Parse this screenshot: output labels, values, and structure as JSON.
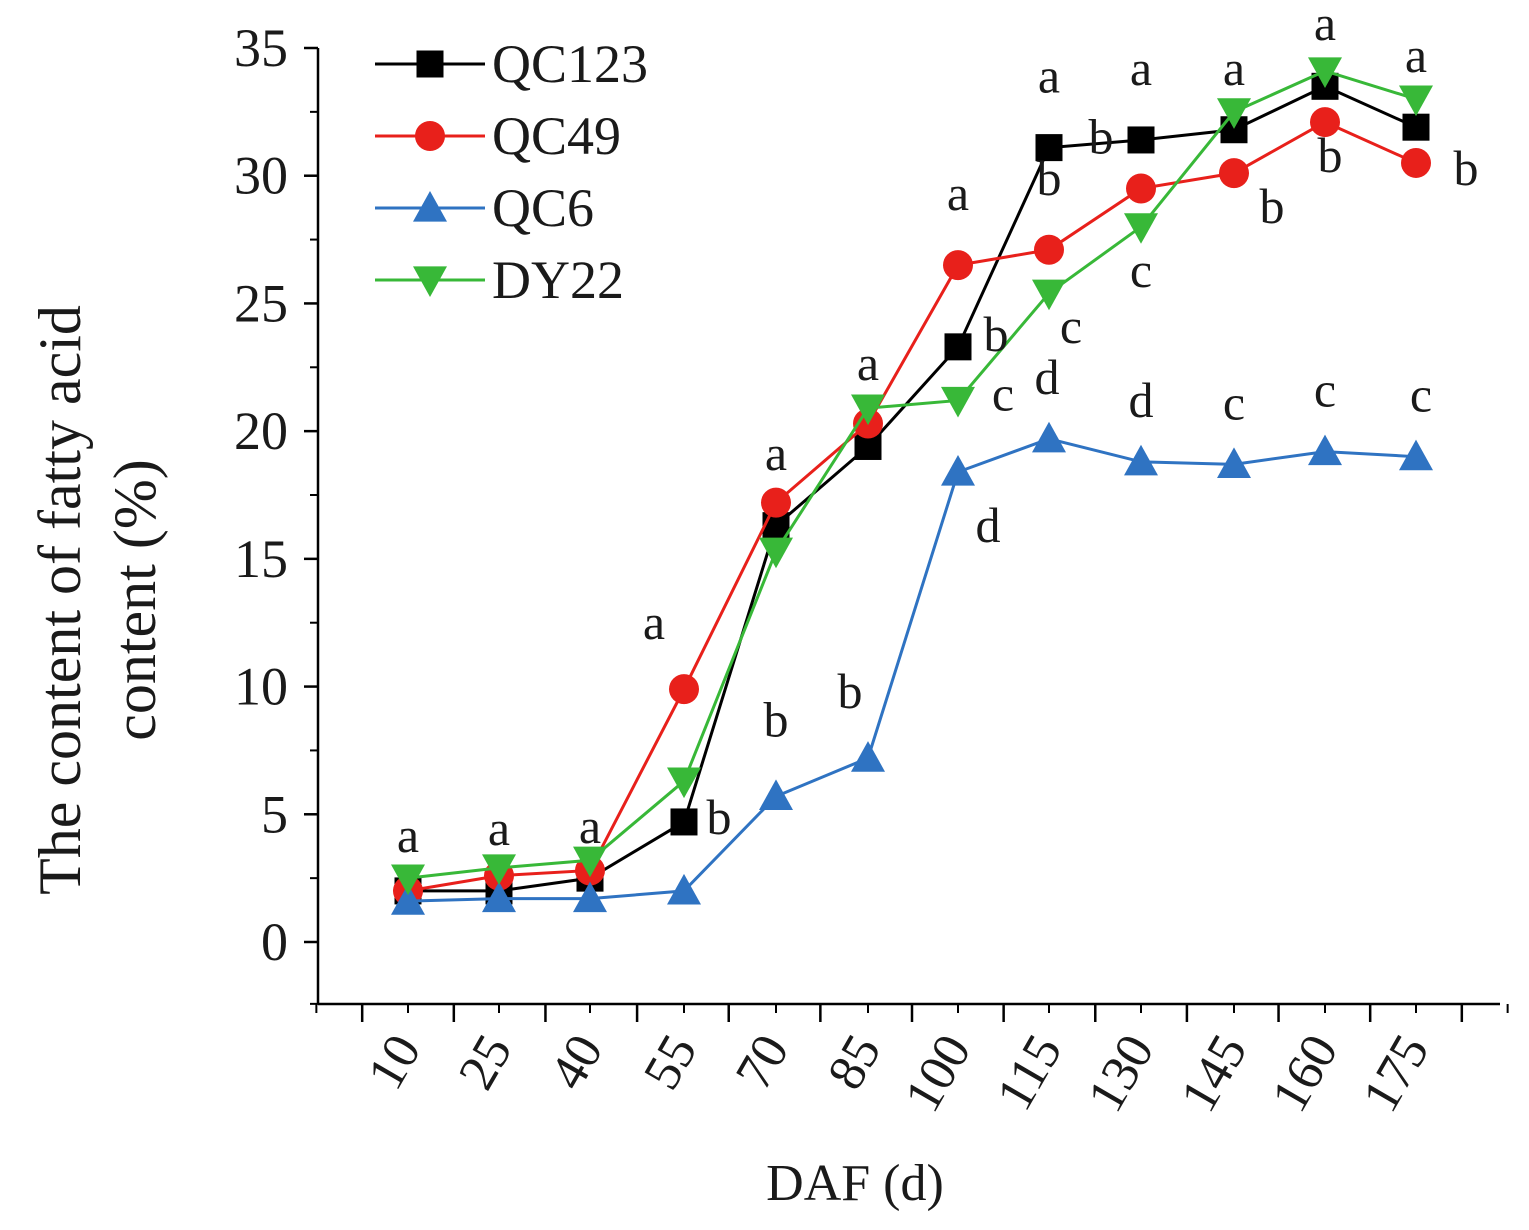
{
  "chart_data": {
    "type": "line",
    "title": "",
    "xlabel": "DAF (d)",
    "ylabel": "The  content of fatty acid content (%)",
    "ylabel_lines": [
      "The  content of fatty acid",
      "content (%)"
    ],
    "ylim": [
      -2.5,
      35
    ],
    "yticks": [
      "0",
      "5",
      "10",
      "15",
      "20",
      "25",
      "30",
      "35"
    ],
    "categories": [
      "10",
      "25",
      "40",
      "55",
      "70",
      "85",
      "100",
      "115",
      "130",
      "145",
      "160",
      "175"
    ],
    "grid": false,
    "legend_position": "top-left",
    "series": [
      {
        "name": "QC123",
        "color": "#000000",
        "marker": "square",
        "values": [
          2.0,
          2.0,
          2.5,
          4.7,
          16.3,
          19.4,
          23.3,
          31.1,
          31.4,
          31.8,
          33.5,
          31.9
        ],
        "labels": [
          "",
          "",
          "",
          "b",
          "",
          "",
          "b",
          "a",
          "a",
          "",
          "",
          ""
        ]
      },
      {
        "name": "QC49",
        "color": "#e8201b",
        "marker": "circle",
        "values": [
          2.0,
          2.6,
          2.8,
          9.9,
          17.2,
          20.3,
          26.5,
          27.1,
          29.5,
          30.1,
          32.1,
          30.5
        ],
        "labels": [
          "",
          "",
          "",
          "a",
          "",
          "",
          "a",
          "b",
          "b",
          "b",
          "b",
          "b"
        ]
      },
      {
        "name": "QC6",
        "color": "#2f73c2",
        "marker": "triangle-up",
        "values": [
          1.6,
          1.7,
          1.7,
          2.0,
          5.7,
          7.2,
          18.4,
          19.7,
          18.8,
          18.7,
          19.2,
          19.0
        ],
        "labels": [
          "",
          "",
          "",
          "",
          "b",
          "b",
          "d",
          "d",
          "d",
          "c",
          "c",
          "c"
        ]
      },
      {
        "name": "DY22",
        "color": "#38b838",
        "marker": "triangle-down",
        "values": [
          2.5,
          2.9,
          3.2,
          6.3,
          15.3,
          20.9,
          21.2,
          25.4,
          28.0,
          32.5,
          34.1,
          33.0
        ],
        "labels": [
          "",
          "",
          "",
          "",
          "",
          "",
          "c",
          "c",
          "c",
          "",
          "",
          ""
        ]
      }
    ],
    "group_labels": [
      "a",
      "a",
      "a",
      "",
      "a",
      "a",
      "",
      "",
      "",
      "a",
      "a",
      "a"
    ]
  }
}
